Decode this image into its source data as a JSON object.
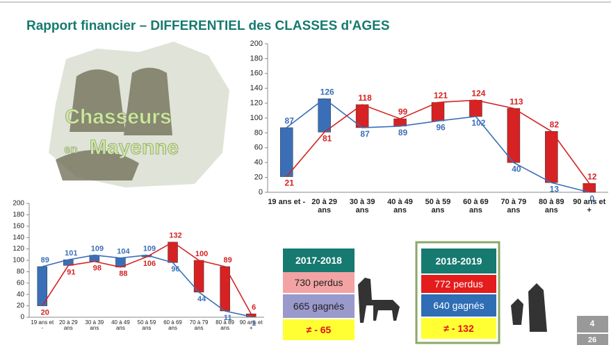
{
  "slide": {
    "title": "Rapport financier – DIFFERENTIEL des CLASSES d'AGES",
    "photo_title": "Chasseurs",
    "photo_small": "en",
    "photo_place": "Mayenne",
    "page_numbers": [
      "4",
      "26"
    ]
  },
  "summaries": [
    {
      "season": "2017-2018",
      "lost": "730 perdus",
      "gained": "665 gagnés",
      "diff": "≠ - 65"
    },
    {
      "season": "2018-2019",
      "lost": "772 perdus",
      "gained": "640 gagnés",
      "diff": "≠ - 132"
    }
  ],
  "chart_data": [
    {
      "type": "line",
      "updown_bars": true,
      "categories": [
        "19 ans et -",
        "20 à 29 ans",
        "30 à 39 ans",
        "40 à 49 ans",
        "50 à 59 ans",
        "60 à 69 ans",
        "70 à 79 ans",
        "80 à 89 ans",
        "90 ans et +"
      ],
      "series": [
        {
          "color": "#3a6fb8",
          "values": [
            87,
            126,
            87,
            89,
            96,
            102,
            40,
            13,
            0
          ]
        },
        {
          "color": "#d62222",
          "values": [
            21,
            81,
            118,
            99,
            121,
            124,
            113,
            82,
            12
          ]
        }
      ],
      "ylim": [
        0,
        200
      ],
      "yticks": [
        0,
        20,
        40,
        60,
        80,
        100,
        120,
        140,
        160,
        180,
        200
      ],
      "grid": false
    },
    {
      "type": "line",
      "updown_bars": true,
      "categories": [
        "19 ans et -",
        "20 à 29 ans",
        "30 à 39 ans",
        "40 à 49 ans",
        "50 à 59 ans",
        "60 à 69 ans",
        "70 à 79 ans",
        "80 à 89 ans",
        "90 ans et +"
      ],
      "series": [
        {
          "color": "#3a6fb8",
          "values": [
            89,
            101,
            109,
            104,
            109,
            96,
            44,
            11,
            1
          ]
        },
        {
          "color": "#d62222",
          "values": [
            20,
            91,
            98,
            88,
            106,
            132,
            100,
            89,
            6
          ]
        }
      ],
      "ylim": [
        0,
        200
      ],
      "yticks": [
        0,
        20,
        40,
        60,
        80,
        100,
        120,
        140,
        160,
        180,
        200
      ],
      "grid": false
    }
  ]
}
